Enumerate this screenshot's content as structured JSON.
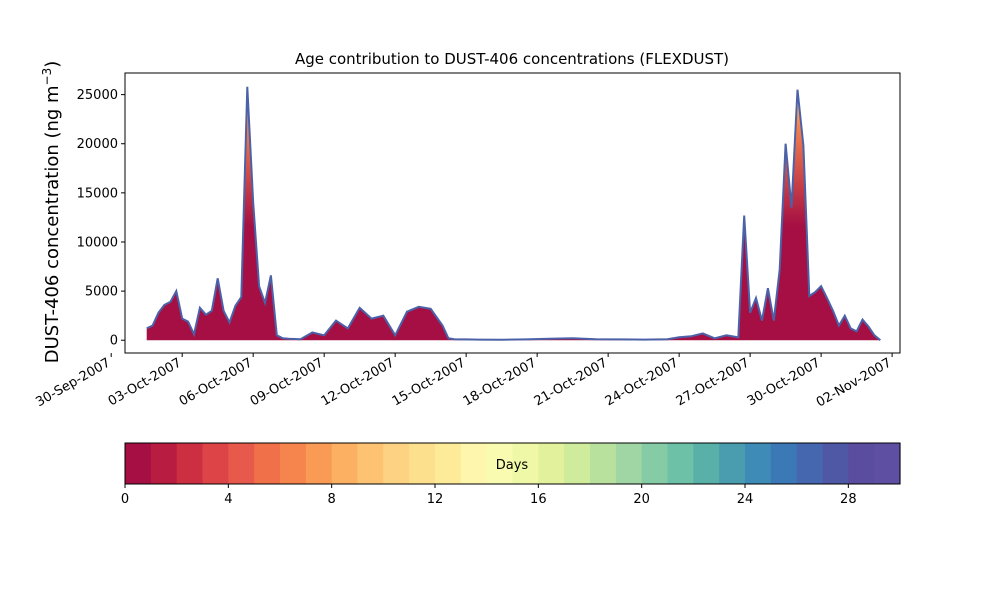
{
  "chart_data": {
    "type": "area",
    "title": "Age contribution to DUST-406 concentrations (FLEXDUST)",
    "ylabel_main": "DUST-406 concentration (ng m",
    "ylabel_sup": "−3",
    "ylabel_end": ")",
    "ylim": [
      -1300,
      27200
    ],
    "yticks": [
      0,
      5000,
      10000,
      15000,
      20000,
      25000
    ],
    "yticklabels": [
      "0",
      "5000",
      "10000",
      "15000",
      "20000",
      "25000"
    ],
    "x_range": [
      "2007-09-30",
      "2007-11-02"
    ],
    "xlim": [
      "2007-09-30T14:00",
      "2007-11-02T08:00"
    ],
    "xticks": [
      "2007-09-30",
      "2007-10-03",
      "2007-10-06",
      "2007-10-09",
      "2007-10-12",
      "2007-10-15",
      "2007-10-18",
      "2007-10-21",
      "2007-10-24",
      "2007-10-27",
      "2007-10-30",
      "2007-11-02"
    ],
    "xticklabels": [
      "30-Sep-2007",
      "03-Oct-2007",
      "06-Oct-2007",
      "09-Oct-2007",
      "12-Oct-2007",
      "15-Oct-2007",
      "18-Oct-2007",
      "21-Oct-2007",
      "24-Oct-2007",
      "27-Oct-2007",
      "30-Oct-2007",
      "02-Nov-2007"
    ],
    "series_total": {
      "x": [
        "2007-10-01T12:00",
        "2007-10-01T18:00",
        "2007-10-02T00:00",
        "2007-10-02T06:00",
        "2007-10-02T12:00",
        "2007-10-02T18:00",
        "2007-10-03T00:00",
        "2007-10-03T06:00",
        "2007-10-03T12:00",
        "2007-10-03T18:00",
        "2007-10-04T00:00",
        "2007-10-04T06:00",
        "2007-10-04T12:00",
        "2007-10-04T18:00",
        "2007-10-05T00:00",
        "2007-10-05T06:00",
        "2007-10-05T12:00",
        "2007-10-05T18:00",
        "2007-10-06T00:00",
        "2007-10-06T06:00",
        "2007-10-06T12:00",
        "2007-10-06T18:00",
        "2007-10-07T00:00",
        "2007-10-07T06:00",
        "2007-10-07T12:00",
        "2007-10-08T00:00",
        "2007-10-08T12:00",
        "2007-10-09T00:00",
        "2007-10-09T12:00",
        "2007-10-10T00:00",
        "2007-10-10T12:00",
        "2007-10-11T00:00",
        "2007-10-11T12:00",
        "2007-10-12T00:00",
        "2007-10-12T12:00",
        "2007-10-13T00:00",
        "2007-10-13T12:00",
        "2007-10-14T00:00",
        "2007-10-14T06:00",
        "2007-10-14T12:00",
        "2007-10-15T00:00",
        "2007-10-15T12:00",
        "2007-10-16T12:00",
        "2007-10-17T12:00",
        "2007-10-18T12:00",
        "2007-10-19T12:00",
        "2007-10-20T12:00",
        "2007-10-21T12:00",
        "2007-10-22T12:00",
        "2007-10-23T12:00",
        "2007-10-24T00:00",
        "2007-10-24T12:00",
        "2007-10-25T00:00",
        "2007-10-25T12:00",
        "2007-10-26T00:00",
        "2007-10-26T12:00",
        "2007-10-26T18:00",
        "2007-10-27T00:00",
        "2007-10-27T06:00",
        "2007-10-27T12:00",
        "2007-10-27T18:00",
        "2007-10-28T00:00",
        "2007-10-28T06:00",
        "2007-10-28T12:00",
        "2007-10-28T18:00",
        "2007-10-29T00:00",
        "2007-10-29T06:00",
        "2007-10-29T12:00",
        "2007-10-29T18:00",
        "2007-10-30T00:00",
        "2007-10-30T06:00",
        "2007-10-30T12:00",
        "2007-10-30T18:00",
        "2007-10-31T00:00",
        "2007-10-31T06:00",
        "2007-10-31T12:00",
        "2007-10-31T18:00",
        "2007-11-01T00:00",
        "2007-11-01T06:00",
        "2007-11-01T12:00"
      ],
      "y": [
        1200,
        1500,
        2800,
        3600,
        3900,
        5000,
        2200,
        1900,
        600,
        3300,
        2600,
        3000,
        6300,
        3000,
        1800,
        3500,
        4400,
        25800,
        14000,
        5500,
        3800,
        6600,
        500,
        200,
        150,
        100,
        800,
        500,
        2000,
        1200,
        3300,
        2200,
        2500,
        500,
        2900,
        3400,
        3200,
        1500,
        200,
        100,
        80,
        60,
        50,
        80,
        150,
        200,
        100,
        80,
        60,
        100,
        300,
        400,
        700,
        200,
        500,
        300,
        12700,
        2800,
        4300,
        2000,
        5300,
        2000,
        7200,
        20000,
        13500,
        25500,
        19800,
        4500,
        4900,
        5500,
        4300,
        3000,
        1500,
        2500,
        1200,
        900,
        2100,
        1400,
        500,
        0
      ]
    }
  },
  "colorbar": {
    "label": "Days",
    "ticks": [
      0,
      4,
      8,
      12,
      16,
      20,
      24,
      28
    ],
    "ticklabels": [
      "0",
      "4",
      "8",
      "12",
      "16",
      "20",
      "24",
      "28"
    ],
    "range": [
      0,
      30
    ],
    "colors": [
      "#a50f43",
      "#b81d41",
      "#cc2e42",
      "#dc4448",
      "#e75a4b",
      "#ef7049",
      "#f5844d",
      "#f99a55",
      "#fbb062",
      "#fdc373",
      "#fdd383",
      "#fde08d",
      "#feeb9a",
      "#fef6ac",
      "#f8fbb0",
      "#eef8a6",
      "#e2f29c",
      "#cfeb9c",
      "#b8e19e",
      "#9fd6a3",
      "#85cba5",
      "#6cc1a6",
      "#58b0a9",
      "#4a9dae",
      "#3d8bb6",
      "#3a79b6",
      "#4467b0",
      "#4f58a5",
      "#5a4da0",
      "#5e4fa2"
    ]
  },
  "colors": {
    "outline": "#4b62a8",
    "young": "#a50f43",
    "mid": "#f5844d",
    "old": "#fde08d"
  }
}
